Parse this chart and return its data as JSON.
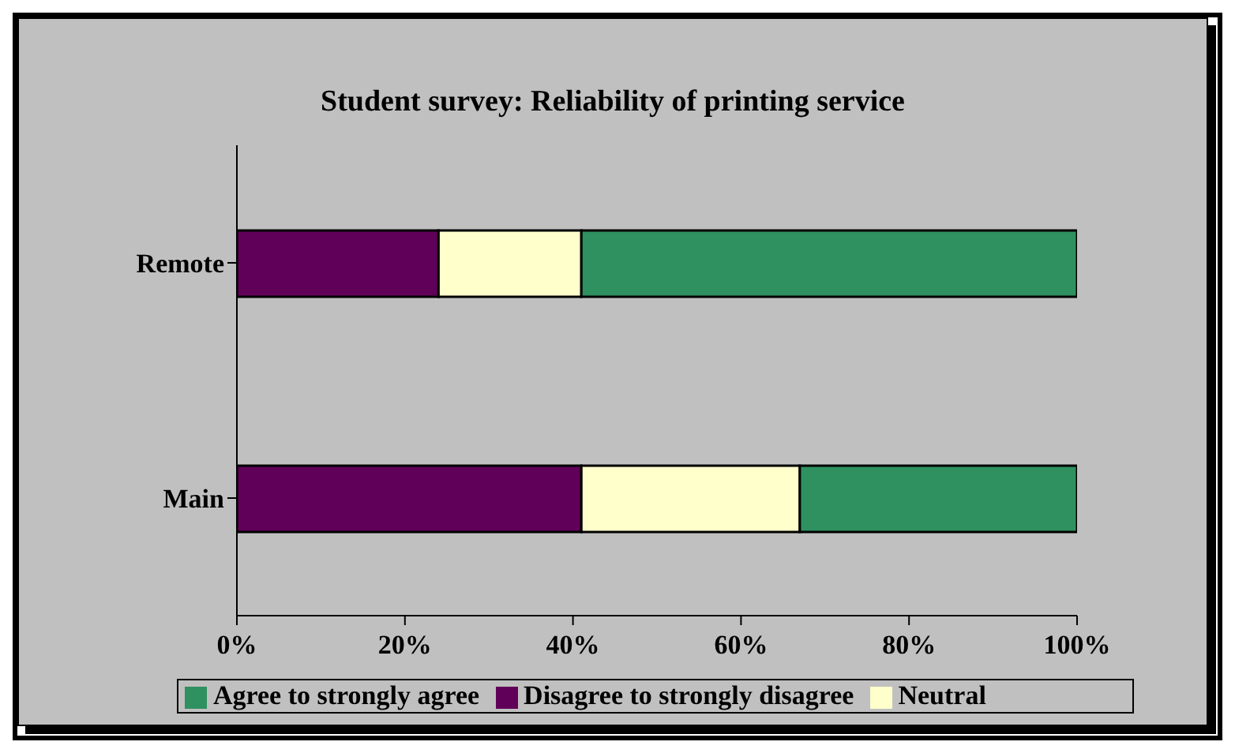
{
  "chart_data": {
    "type": "bar",
    "orientation": "horizontal",
    "stacked": true,
    "title": "Student survey: Reliability of printing service",
    "categories": [
      "Remote",
      "Main"
    ],
    "series": [
      {
        "name": "Disagree to strongly disagree",
        "color": "#600058",
        "values": [
          24,
          41
        ]
      },
      {
        "name": "Neutral",
        "color": "#ffffcc",
        "values": [
          17,
          26
        ]
      },
      {
        "name": "Agree to strongly agree",
        "color": "#2f9060",
        "values": [
          59,
          33
        ]
      }
    ],
    "xlim": [
      0,
      100
    ],
    "xticks": [
      {
        "value": 0,
        "label": "0%"
      },
      {
        "value": 20,
        "label": "20%"
      },
      {
        "value": 40,
        "label": "40%"
      },
      {
        "value": 60,
        "label": "60%"
      },
      {
        "value": 80,
        "label": "80%"
      },
      {
        "value": 100,
        "label": "100%"
      }
    ],
    "legend": "bottom",
    "grid": false
  }
}
